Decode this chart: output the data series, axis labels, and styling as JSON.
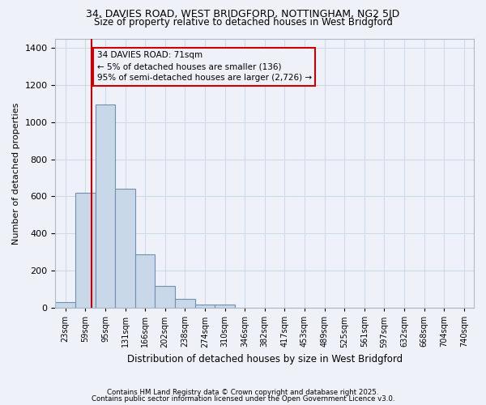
{
  "title_line1": "34, DAVIES ROAD, WEST BRIDGFORD, NOTTINGHAM, NG2 5JD",
  "title_line2": "Size of property relative to detached houses in West Bridgford",
  "xlabel": "Distribution of detached houses by size in West Bridgford",
  "ylabel": "Number of detached properties",
  "bin_labels": [
    "23sqm",
    "59sqm",
    "95sqm",
    "131sqm",
    "166sqm",
    "202sqm",
    "238sqm",
    "274sqm",
    "310sqm",
    "346sqm",
    "382sqm",
    "417sqm",
    "453sqm",
    "489sqm",
    "525sqm",
    "561sqm",
    "597sqm",
    "632sqm",
    "668sqm",
    "704sqm",
    "740sqm"
  ],
  "bar_heights": [
    30,
    620,
    1095,
    640,
    290,
    120,
    50,
    20,
    20,
    0,
    0,
    0,
    0,
    0,
    0,
    0,
    0,
    0,
    0,
    0,
    0
  ],
  "bar_color": "#c8d8e8",
  "bar_edge_color": "#7090b0",
  "vline_pos": 1.33,
  "marker_label": "34 DAVIES ROAD: 71sqm\n← 5% of detached houses are smaller (136)\n95% of semi-detached houses are larger (2,726) →",
  "vline_color": "#cc0000",
  "annotation_box_color": "#cc0000",
  "grid_color": "#d0d8e8",
  "background_color": "#eef2f8",
  "ylim": [
    0,
    1450
  ],
  "footer_line1": "Contains HM Land Registry data © Crown copyright and database right 2025.",
  "footer_line2": "Contains public sector information licensed under the Open Government Licence v3.0."
}
